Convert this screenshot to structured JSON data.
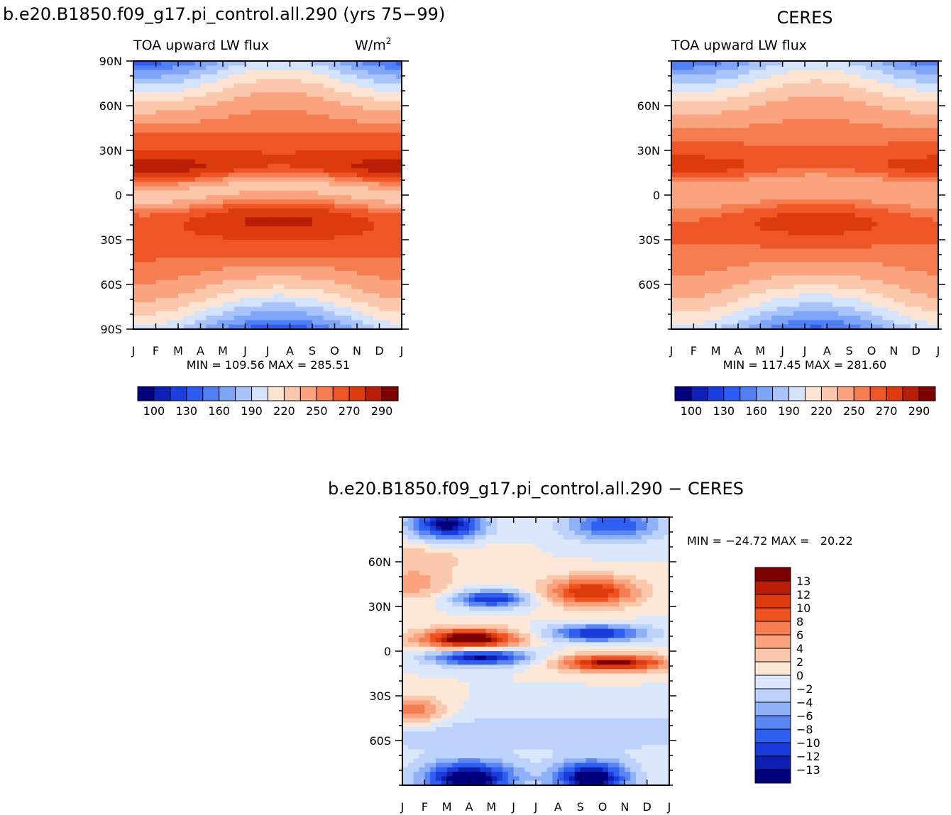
{
  "chart_data": [
    {
      "type": "heatmap",
      "id": "model",
      "title": "b.e20.B1850.f09_g17.pi_control.all.290 (yrs 75−99)",
      "subtitle_left": "TOA upward LW flux",
      "subtitle_right": "W/m",
      "subtitle_right_sup": "2",
      "x_ticks": [
        "J",
        "F",
        "M",
        "A",
        "M",
        "J",
        "J",
        "A",
        "S",
        "O",
        "N",
        "D",
        "J"
      ],
      "y_ticks": [
        "90N",
        "60N",
        "30N",
        "0",
        "30S",
        "60S",
        "90S"
      ],
      "y_tick_lats": [
        90,
        60,
        30,
        0,
        -30,
        -60,
        -90
      ],
      "ylim": [
        -90,
        90
      ],
      "minmax": "MIN = 109.56 MAX = 285.51",
      "min": 109.56,
      "max": 285.51,
      "colorbar_labels": [
        "100",
        "130",
        "160",
        "190",
        "220",
        "250",
        "270",
        "290"
      ],
      "colorbar_levels": [
        100,
        115,
        130,
        145,
        160,
        175,
        190,
        205,
        220,
        235,
        250,
        260,
        270,
        280,
        290
      ],
      "colors": [
        "#00007f",
        "#0d21b8",
        "#1a3fe0",
        "#2e5bf5",
        "#4f7ef5",
        "#7ea4f7",
        "#a9c4fa",
        "#d2e3fb",
        "#fde4d2",
        "#fcc8ac",
        "#f9a47e",
        "#f57d50",
        "#ee5628",
        "#dd3a0e",
        "#b81e06",
        "#7f0000"
      ],
      "grid": false
    },
    {
      "type": "heatmap",
      "id": "obs",
      "title": "CERES",
      "subtitle_left": "TOA upward LW flux",
      "x_ticks": [
        "J",
        "F",
        "M",
        "A",
        "M",
        "J",
        "J",
        "A",
        "S",
        "O",
        "N",
        "D",
        "J"
      ],
      "y_ticks": [
        "60N",
        "30N",
        "0",
        "30S",
        "60S"
      ],
      "y_tick_lats": [
        60,
        30,
        0,
        -30,
        -60
      ],
      "ylim": [
        -90,
        90
      ],
      "minmax": "MIN = 117.45 MAX = 281.60",
      "min": 117.45,
      "max": 281.6,
      "colorbar_labels": [
        "100",
        "130",
        "160",
        "190",
        "220",
        "250",
        "270",
        "290"
      ],
      "colors": [
        "#00007f",
        "#0d21b8",
        "#1a3fe0",
        "#2e5bf5",
        "#4f7ef5",
        "#7ea4f7",
        "#a9c4fa",
        "#d2e3fb",
        "#fde4d2",
        "#fcc8ac",
        "#f9a47e",
        "#f57d50",
        "#ee5628",
        "#dd3a0e",
        "#b81e06",
        "#7f0000"
      ],
      "grid": false
    },
    {
      "type": "heatmap",
      "id": "diff",
      "title": "b.e20.B1850.f09_g17.pi_control.all.290 − CERES",
      "x_ticks": [
        "J",
        "F",
        "M",
        "A",
        "M",
        "J",
        "J",
        "A",
        "S",
        "O",
        "N",
        "D",
        "J"
      ],
      "y_ticks": [
        "60N",
        "30N",
        "0",
        "30S",
        "60S"
      ],
      "y_tick_lats": [
        60,
        30,
        0,
        -30,
        -60
      ],
      "ylim": [
        -90,
        90
      ],
      "minmax": "MIN = −24.72 MAX =   20.22",
      "min": -24.72,
      "max": 20.22,
      "colorbar_labels": [
        "13",
        "12",
        "10",
        "8",
        "6",
        "4",
        "2",
        "0",
        "−2",
        "−4",
        "−6",
        "−8",
        "−10",
        "−12",
        "−13"
      ],
      "colors": [
        "#7f0000",
        "#b81e06",
        "#dd3a0e",
        "#f0521f",
        "#f57d50",
        "#f9a47e",
        "#fcc8ac",
        "#fde8d8",
        "#dbe8fb",
        "#bcd2fa",
        "#8fb1f7",
        "#5a86f3",
        "#2f5ff0",
        "#1a3ad9",
        "#0d1fb0",
        "#00007f"
      ],
      "grid": false
    }
  ]
}
